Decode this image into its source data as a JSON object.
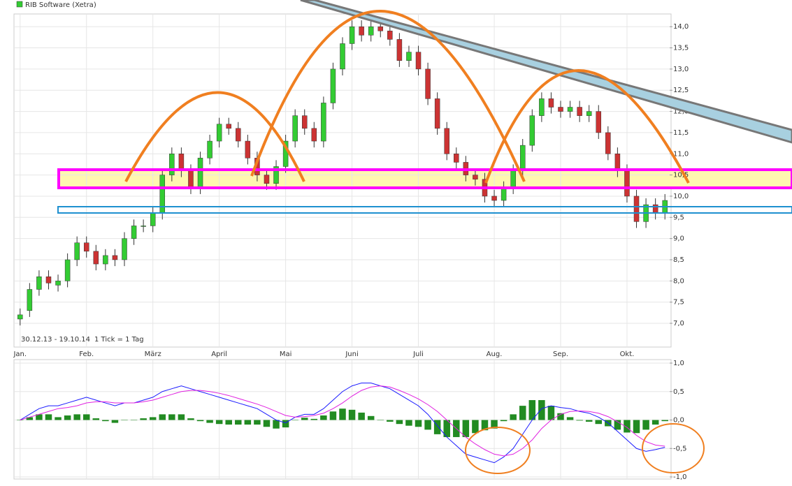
{
  "chart_data": [
    {
      "type": "candlestick",
      "legend": "RIB Software (Xetra)",
      "legend_color": "#33cc33",
      "annotations": [
        "30.12.13 - 19.10.14",
        "1 Tick = 1 Tag"
      ],
      "up_color": "#33cc33",
      "down_color": "#cc3333",
      "grid": true,
      "categories": [
        "Jan.",
        null,
        null,
        null,
        null,
        null,
        null,
        "Feb.",
        null,
        null,
        null,
        null,
        null,
        null,
        "März",
        null,
        null,
        null,
        null,
        null,
        null,
        "April",
        null,
        null,
        null,
        null,
        null,
        null,
        "Mai",
        null,
        null,
        null,
        null,
        null,
        null,
        "Juni",
        null,
        null,
        null,
        null,
        null,
        null,
        "Juli",
        null,
        null,
        null,
        null,
        null,
        null,
        null,
        "Aug.",
        null,
        null,
        null,
        null,
        null,
        null,
        "Sep.",
        null,
        null,
        null,
        null,
        null,
        null,
        "Okt.",
        null,
        null,
        null,
        null
      ],
      "open": [
        7.1,
        7.3,
        7.8,
        8.1,
        7.9,
        8.0,
        8.5,
        8.9,
        8.7,
        8.4,
        8.6,
        8.5,
        9.0,
        9.3,
        9.3,
        9.6,
        10.5,
        11.0,
        10.6,
        10.2,
        10.9,
        11.3,
        11.7,
        11.6,
        11.3,
        10.9,
        10.5,
        10.3,
        10.7,
        11.3,
        11.9,
        11.6,
        11.3,
        12.2,
        13.0,
        13.6,
        14.0,
        13.8,
        14.0,
        13.9,
        13.7,
        13.2,
        13.4,
        13.0,
        12.3,
        11.6,
        11.0,
        10.8,
        10.5,
        10.4,
        10.0,
        9.9,
        10.2,
        10.6,
        11.2,
        11.9,
        12.3,
        12.1,
        12.0,
        12.1,
        11.9,
        12.0,
        11.5,
        11.0,
        10.6,
        10.0,
        9.4,
        9.8,
        9.6
      ],
      "high": [
        7.35,
        7.95,
        8.25,
        8.25,
        8.15,
        8.65,
        9.05,
        9.05,
        8.85,
        8.75,
        8.75,
        9.15,
        9.45,
        9.45,
        9.75,
        10.65,
        11.15,
        11.15,
        10.75,
        11.05,
        11.45,
        11.85,
        11.85,
        11.75,
        11.45,
        11.05,
        10.65,
        10.85,
        11.45,
        12.05,
        12.05,
        11.75,
        12.35,
        13.15,
        13.75,
        14.15,
        14.15,
        14.15,
        14.15,
        14.05,
        13.85,
        13.55,
        13.55,
        13.15,
        12.45,
        11.75,
        11.15,
        10.95,
        10.65,
        10.55,
        10.15,
        10.35,
        10.75,
        11.35,
        12.05,
        12.45,
        12.45,
        12.25,
        12.25,
        12.25,
        12.15,
        12.15,
        11.65,
        11.15,
        10.75,
        10.15,
        9.95,
        9.95,
        10.05
      ],
      "low": [
        6.95,
        7.15,
        7.65,
        7.8,
        7.75,
        7.85,
        8.35,
        8.55,
        8.25,
        8.25,
        8.35,
        8.35,
        8.85,
        9.15,
        9.15,
        9.45,
        10.35,
        10.45,
        10.05,
        10.05,
        10.75,
        11.15,
        11.45,
        11.15,
        10.75,
        10.35,
        10.15,
        10.15,
        10.55,
        11.15,
        11.45,
        11.15,
        11.15,
        12.05,
        12.85,
        13.45,
        13.65,
        13.65,
        13.75,
        13.55,
        13.05,
        13.05,
        12.85,
        12.15,
        11.45,
        10.85,
        10.65,
        10.35,
        10.25,
        9.85,
        9.75,
        9.75,
        10.05,
        10.45,
        11.05,
        11.75,
        11.95,
        11.85,
        11.85,
        11.75,
        11.75,
        11.35,
        10.85,
        10.45,
        9.85,
        9.25,
        9.25,
        9.45,
        9.45
      ],
      "close": [
        7.2,
        7.8,
        8.1,
        7.95,
        8.0,
        8.5,
        8.9,
        8.7,
        8.4,
        8.6,
        8.5,
        9.0,
        9.3,
        9.3,
        9.6,
        10.5,
        11.0,
        10.6,
        10.2,
        10.9,
        11.3,
        11.7,
        11.6,
        11.3,
        10.9,
        10.5,
        10.3,
        10.7,
        11.3,
        11.9,
        11.6,
        11.3,
        12.2,
        13.0,
        13.6,
        14.0,
        13.8,
        14.0,
        13.9,
        13.7,
        13.2,
        13.4,
        13.0,
        12.3,
        11.6,
        11.0,
        10.8,
        10.5,
        10.4,
        10.0,
        9.9,
        10.2,
        10.6,
        11.2,
        11.9,
        12.3,
        12.1,
        12.0,
        12.1,
        11.9,
        12.0,
        11.5,
        11.0,
        10.6,
        10.0,
        9.4,
        9.8,
        9.6,
        9.9
      ],
      "ylim": [
        6.44,
        14.3
      ],
      "yticks": [
        {
          "value": 7,
          "label": "7,0"
        },
        {
          "value": 7.5,
          "label": "7,5"
        },
        {
          "value": 8,
          "label": "8,0"
        },
        {
          "value": 8.5,
          "label": "8,5"
        },
        {
          "value": 9,
          "label": "9,0"
        },
        {
          "value": 9.5,
          "label": "9,5"
        },
        {
          "value": 10,
          "label": "10,0"
        },
        {
          "value": 10.5,
          "label": "10,5"
        },
        {
          "value": 11,
          "label": "11,0"
        },
        {
          "value": 11.5,
          "label": "11,5"
        },
        {
          "value": 12,
          "label": "12,0"
        },
        {
          "value": 12.5,
          "label": "12,5"
        },
        {
          "value": 13,
          "label": "13,0"
        },
        {
          "value": 13.5,
          "label": "13,5"
        },
        {
          "value": 14,
          "label": "14,0"
        }
      ]
    },
    {
      "type": "macd",
      "grid": true,
      "series": [
        {
          "kind": "bar",
          "color": "#228b22",
          "values": [
            0,
            0.05,
            0.1,
            0.1,
            0.05,
            0.08,
            0.1,
            0.1,
            0.03,
            -0.02,
            -0.05,
            0,
            0,
            0.03,
            0.05,
            0.1,
            0.1,
            0.1,
            0.03,
            -0.02,
            -0.05,
            -0.07,
            -0.08,
            -0.08,
            -0.08,
            -0.08,
            -0.12,
            -0.15,
            -0.13,
            0,
            0.04,
            0.02,
            0.08,
            0.15,
            0.2,
            0.18,
            0.13,
            0.07,
            0,
            -0.03,
            -0.07,
            -0.1,
            -0.12,
            -0.17,
            -0.25,
            -0.3,
            -0.3,
            -0.3,
            -0.23,
            -0.18,
            -0.15,
            -0.02,
            0.1,
            0.25,
            0.35,
            0.35,
            0.25,
            0.12,
            0.05,
            -0.01,
            -0.03,
            -0.07,
            -0.11,
            -0.17,
            -0.22,
            -0.23,
            -0.17,
            -0.08,
            -0.02
          ]
        },
        {
          "kind": "line",
          "color": "#1a1aff",
          "values": [
            0,
            0.1,
            0.2,
            0.25,
            0.25,
            0.3,
            0.35,
            0.4,
            0.35,
            0.3,
            0.25,
            0.3,
            0.3,
            0.35,
            0.4,
            0.5,
            0.55,
            0.6,
            0.55,
            0.5,
            0.45,
            0.4,
            0.35,
            0.3,
            0.25,
            0.2,
            0.1,
            0,
            -0.05,
            0.05,
            0.1,
            0.1,
            0.2,
            0.35,
            0.5,
            0.6,
            0.65,
            0.65,
            0.6,
            0.55,
            0.45,
            0.35,
            0.25,
            0.1,
            -0.1,
            -0.3,
            -0.45,
            -0.6,
            -0.65,
            -0.7,
            -0.75,
            -0.65,
            -0.5,
            -0.25,
            0,
            0.2,
            0.25,
            0.22,
            0.2,
            0.15,
            0.12,
            0.05,
            -0.05,
            -0.2,
            -0.35,
            -0.5,
            -0.55,
            -0.52,
            -0.48
          ]
        },
        {
          "kind": "line",
          "color": "#e020e0",
          "values": [
            0,
            0.05,
            0.1,
            0.15,
            0.2,
            0.22,
            0.25,
            0.3,
            0.32,
            0.32,
            0.3,
            0.3,
            0.3,
            0.32,
            0.35,
            0.4,
            0.45,
            0.5,
            0.52,
            0.52,
            0.5,
            0.47,
            0.43,
            0.38,
            0.33,
            0.28,
            0.22,
            0.15,
            0.08,
            0.05,
            0.06,
            0.08,
            0.12,
            0.2,
            0.3,
            0.42,
            0.52,
            0.58,
            0.6,
            0.58,
            0.52,
            0.45,
            0.37,
            0.27,
            0.15,
            0,
            -0.15,
            -0.3,
            -0.42,
            -0.52,
            -0.6,
            -0.63,
            -0.6,
            -0.5,
            -0.35,
            -0.15,
            0,
            0.1,
            0.15,
            0.16,
            0.15,
            0.12,
            0.06,
            -0.03,
            -0.13,
            -0.27,
            -0.38,
            -0.44,
            -0.46
          ]
        }
      ],
      "ylim": [
        -1,
        1
      ],
      "yticks": [
        {
          "value": -1,
          "label": "-1,0"
        },
        {
          "value": -0.5,
          "label": "-0,5"
        },
        {
          "value": 0,
          "label": "0,0"
        },
        {
          "value": 0.5,
          "label": "0,5"
        },
        {
          "value": 1,
          "label": "1,0"
        }
      ]
    }
  ]
}
